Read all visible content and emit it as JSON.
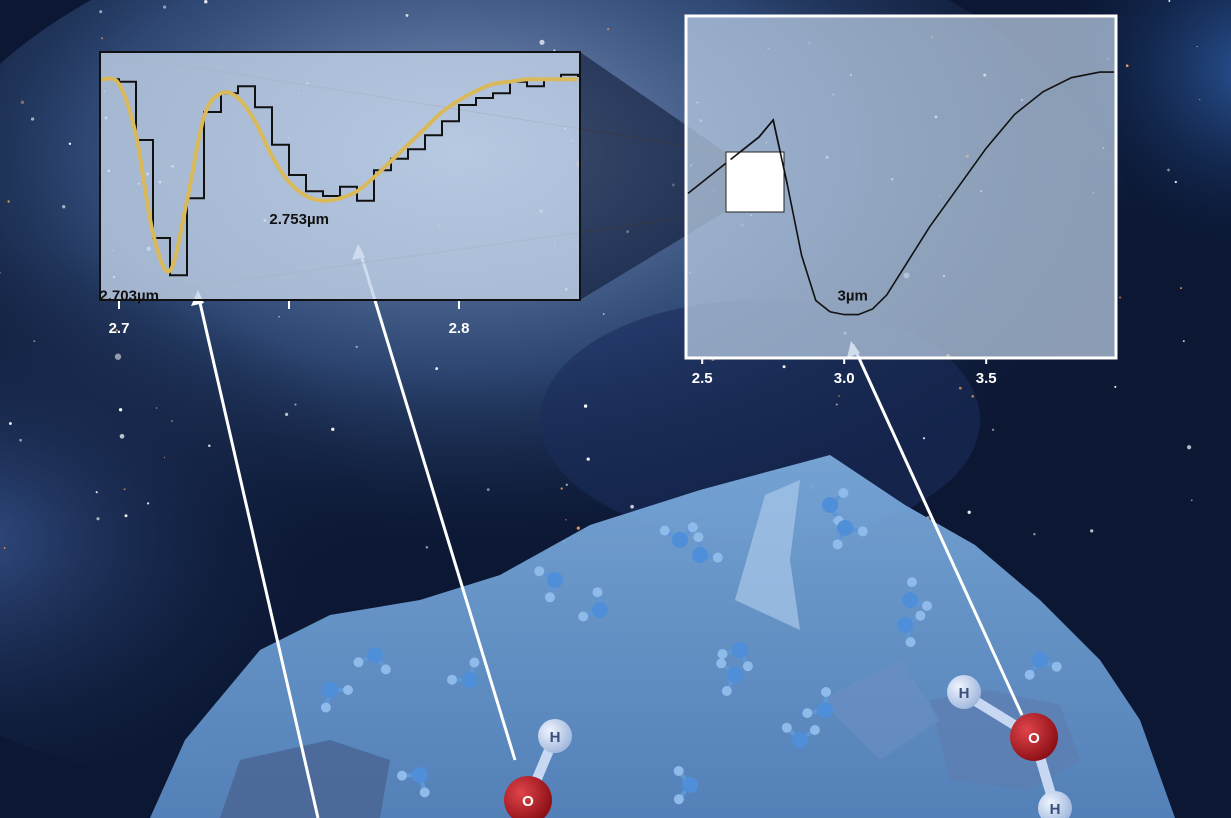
{
  "chart_data": [
    {
      "type": "line",
      "panel": "full spectrum",
      "xlim": [
        2.45,
        3.95
      ],
      "x_ticks": [
        "2.5",
        "3.0",
        "3.5"
      ],
      "tick_values": [
        2.5,
        3.0,
        3.5
      ],
      "series": [
        {
          "x": [
            2.45,
            2.5,
            2.55,
            2.6,
            2.65,
            2.7,
            2.75,
            2.8,
            2.85,
            2.9,
            2.95,
            3.0,
            3.05,
            3.1,
            3.15,
            3.2,
            3.3,
            3.4,
            3.5,
            3.6,
            3.7,
            3.8,
            3.9,
            3.95
          ],
          "y": [
            0.52,
            0.56,
            0.6,
            0.64,
            0.68,
            0.72,
            0.78,
            0.55,
            0.3,
            0.14,
            0.1,
            0.09,
            0.09,
            0.11,
            0.16,
            0.24,
            0.4,
            0.54,
            0.68,
            0.8,
            0.88,
            0.93,
            0.95,
            0.95
          ]
        }
      ],
      "annotations": [
        {
          "text": "3µm",
          "x": 3.03
        }
      ]
    },
    {
      "type": "line",
      "panel": "zoomed inset",
      "xlim": [
        2.695,
        2.835
      ],
      "x_ticks": [
        "2.7",
        "2.8"
      ],
      "tick_values": [
        2.7,
        2.8
      ],
      "series": [
        {
          "name": "data",
          "color": "#111111",
          "x": [
            2.695,
            2.7,
            2.705,
            2.71,
            2.715,
            2.72,
            2.725,
            2.73,
            2.735,
            2.74,
            2.745,
            2.75,
            2.755,
            2.76,
            2.765,
            2.77,
            2.775,
            2.78,
            2.785,
            2.79,
            2.795,
            2.8,
            2.805,
            2.81,
            2.815,
            2.82,
            2.825,
            2.83,
            2.835
          ],
          "y": [
            0.96,
            0.95,
            0.7,
            0.28,
            0.12,
            0.45,
            0.82,
            0.9,
            0.93,
            0.84,
            0.68,
            0.55,
            0.48,
            0.46,
            0.5,
            0.44,
            0.57,
            0.62,
            0.66,
            0.72,
            0.78,
            0.85,
            0.88,
            0.9,
            0.95,
            0.93,
            0.96,
            0.98,
            0.97
          ]
        },
        {
          "name": "fit",
          "color": "#d9b95a",
          "x": [
            2.695,
            2.7,
            2.705,
            2.71,
            2.715,
            2.72,
            2.725,
            2.73,
            2.735,
            2.74,
            2.745,
            2.75,
            2.755,
            2.76,
            2.765,
            2.77,
            2.775,
            2.78,
            2.785,
            2.79,
            2.795,
            2.8,
            2.805,
            2.81,
            2.815,
            2.82,
            2.825,
            2.83,
            2.835
          ],
          "y": [
            0.96,
            0.94,
            0.72,
            0.3,
            0.14,
            0.44,
            0.8,
            0.9,
            0.88,
            0.78,
            0.63,
            0.52,
            0.46,
            0.44,
            0.45,
            0.48,
            0.54,
            0.61,
            0.68,
            0.75,
            0.82,
            0.87,
            0.91,
            0.94,
            0.95,
            0.96,
            0.96,
            0.96,
            0.96
          ]
        }
      ],
      "annotations": [
        {
          "text": "2.703µm",
          "x": 2.703
        },
        {
          "text": "2.753µm",
          "x": 2.753
        }
      ]
    }
  ],
  "colors": {
    "fit_curve": "#d9b95a",
    "spectrum_line": "#111111",
    "ice_grain": "#6fa6dc",
    "oxygen_atom": "#b0141c",
    "hydrogen_atom": "#c9d8f2"
  },
  "molecules": {
    "left": {
      "oxygen": "O",
      "hydrogen": "H"
    },
    "right": {
      "oxygen": "O",
      "hydrogen_1": "H",
      "hydrogen_2": "H"
    }
  }
}
